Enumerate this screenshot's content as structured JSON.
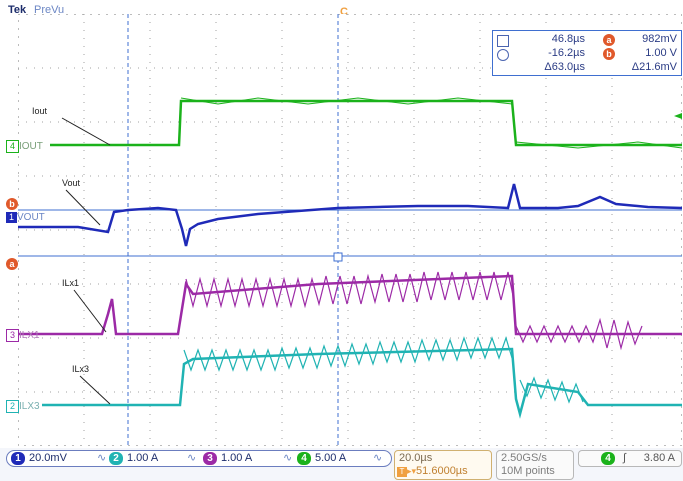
{
  "header": {
    "brand": "Tek",
    "mode": "PreVu",
    "trigger_marker": "T",
    "cursor_marker": "C"
  },
  "measurements": {
    "cursor1_time": "46.8µs",
    "cursor2_time": "-16.2µs",
    "delta_time": "Δ63.0µs",
    "a_label": "a",
    "b_label": "b",
    "a_value": "982mV",
    "b_value": "1.00 V",
    "delta_value": "Δ21.6mV"
  },
  "traces": [
    {
      "id": "iout",
      "label": "Iout",
      "channel": "4",
      "channel_name": "IOUT",
      "color": "#1bb21b"
    },
    {
      "id": "vout",
      "label": "Vout",
      "channel": "1",
      "channel_name": "VOUT",
      "color": "#1f2ab8"
    },
    {
      "id": "ilx1",
      "label": "ILx1",
      "channel": "3",
      "channel_name": "ILX1",
      "color": "#9c2aa6"
    },
    {
      "id": "ilx3",
      "label": "ILx3",
      "channel": "2",
      "channel_name": "ILX3",
      "color": "#20b3b3"
    }
  ],
  "cursor_labels": {
    "b": "b",
    "a": "a"
  },
  "status_bar": {
    "ch1_scale": "20.0mV",
    "ch2_scale": "1.00 A",
    "ch3_scale": "1.00 A",
    "ch4_scale": "5.00 A",
    "ch1_num": "1",
    "ch2_num": "2",
    "ch3_num": "3",
    "ch4_num": "4",
    "timebase": "20.0µs",
    "trigger_delay": "51.6000µs",
    "sample_rate": "2.50GS/s",
    "record_length": "10M points",
    "trigger_ch": "4",
    "trigger_level": "3.80 A"
  },
  "colors": {
    "grid": "#7a7a7a",
    "cursor_line": "#3f6fd0",
    "ch1": "#1f2ab8",
    "ch2": "#20b3b3",
    "ch3": "#9c2aa6",
    "ch4": "#1bb21b",
    "accent": "#f0a040",
    "cursor_tag": "#e0592b"
  }
}
